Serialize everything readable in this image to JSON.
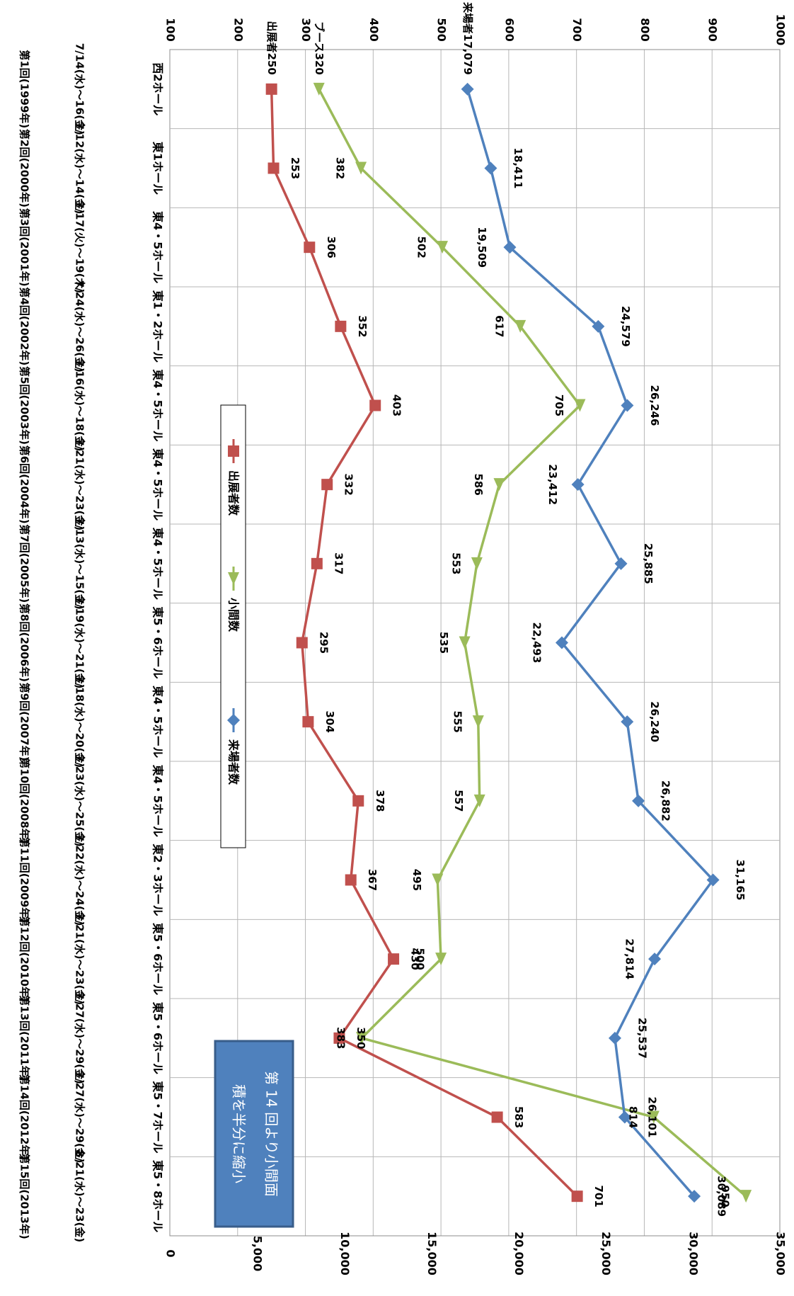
{
  "chart_data": {
    "type": "line",
    "orientation": "rotated-90-clockwise",
    "categories": [
      {
        "hall": "西2ホール",
        "dates": "7/14(水)～16(金)",
        "edition": "第1回(1999年)"
      },
      {
        "hall": "東1ホール",
        "dates": "7/12(水)～14(金)",
        "edition": "第2回(2000年)"
      },
      {
        "hall": "東4・5ホール",
        "dates": "7/17(火)～19(木)",
        "edition": "第3回(2001年)"
      },
      {
        "hall": "東1・2ホール",
        "dates": "7/24(水)～26(金)",
        "edition": "第4回(2002年)"
      },
      {
        "hall": "東4・5ホール",
        "dates": "7/16(水)～18(金)",
        "edition": "第5回(2003年)"
      },
      {
        "hall": "東4・5ホール",
        "dates": "7/21(水)～23(金)",
        "edition": "第6回(2004年)"
      },
      {
        "hall": "東4・5ホール",
        "dates": "7/13(水)～15(金)",
        "edition": "第7回(2005年)"
      },
      {
        "hall": "東5・6ホール",
        "dates": "7/19(水)～21(金)",
        "edition": "第8回(2006年)"
      },
      {
        "hall": "東4・5ホール",
        "dates": "7/18(水)～20(金)",
        "edition": "第9回(2007年)"
      },
      {
        "hall": "東4・5ホール",
        "dates": "7/23(水)～25(金)",
        "edition": "第10回(2008年)"
      },
      {
        "hall": "東2・3ホール",
        "dates": "7/22(水)～24(金)",
        "edition": "第11回(2009年)"
      },
      {
        "hall": "東5・6ホール",
        "dates": "7/21(水)～23(金)",
        "edition": "第12回(2010年)"
      },
      {
        "hall": "東5・6ホール",
        "dates": "7/27(水)～29(金)",
        "edition": "第13回(2011年)"
      },
      {
        "hall": "東5・7ホール",
        "dates": "7/27(水)～29(金)",
        "edition": "第14回(2012年)"
      },
      {
        "hall": "東5・8ホール",
        "dates": "8/21(水)～23(金)",
        "edition": "第15回(2013年)"
      }
    ],
    "series": [
      {
        "name": "出展者数",
        "axis": "secondary",
        "color": "#c0504d",
        "marker": "square",
        "values": [
          250,
          253,
          306,
          352,
          403,
          332,
          317,
          295,
          304,
          378,
          367,
          430,
          350,
          583,
          701
        ],
        "labels": [
          "出展者250",
          "253",
          "306",
          "352",
          "403",
          "332",
          "317",
          "295",
          "304",
          "378",
          "367",
          "430",
          "350",
          "583",
          "701"
        ]
      },
      {
        "name": "小間数",
        "axis": "secondary",
        "color": "#9bbb59",
        "marker": "triangle",
        "values": [
          320,
          382,
          502,
          617,
          705,
          586,
          553,
          535,
          555,
          557,
          495,
          500,
          383,
          814,
          950
        ],
        "labels": [
          "ブース320",
          "382",
          "502",
          "617",
          "705",
          "586",
          "553",
          "535",
          "555",
          "557",
          "495",
          "500",
          "383",
          "814",
          "950"
        ]
      },
      {
        "name": "来場者数",
        "axis": "primary",
        "color": "#4f81bd",
        "marker": "diamond",
        "values": [
          17079,
          18411,
          19509,
          24579,
          26246,
          23412,
          25885,
          22493,
          26240,
          26882,
          31165,
          27814,
          25537,
          26101,
          30089
        ],
        "labels": [
          "来場者17,079",
          "18,411",
          "19,509",
          "24,579",
          "26,246",
          "23,412",
          "25,885",
          "22,493",
          "26,240",
          "26,882",
          "31,165",
          "27,814",
          "25,537",
          "26,101",
          "30,089"
        ]
      }
    ],
    "primary_axis": {
      "range": [
        0,
        35000
      ],
      "ticks": [
        "0",
        "5,000",
        "10,000",
        "15,000",
        "20,000",
        "25,000",
        "30,000",
        "35,000"
      ]
    },
    "secondary_axis": {
      "range": [
        100,
        1000
      ],
      "ticks": [
        "100",
        "200",
        "300",
        "400",
        "500",
        "600",
        "700",
        "800",
        "900",
        "1000"
      ]
    },
    "legend": {
      "position": "inside-center",
      "entries": [
        "出展者数",
        "小間数",
        "来場者数"
      ]
    },
    "annotation": {
      "text_line1": "第 14 回より小間面",
      "text_line2": "積を半分に縮小",
      "fill": "#4f81bd"
    },
    "grid": true
  }
}
